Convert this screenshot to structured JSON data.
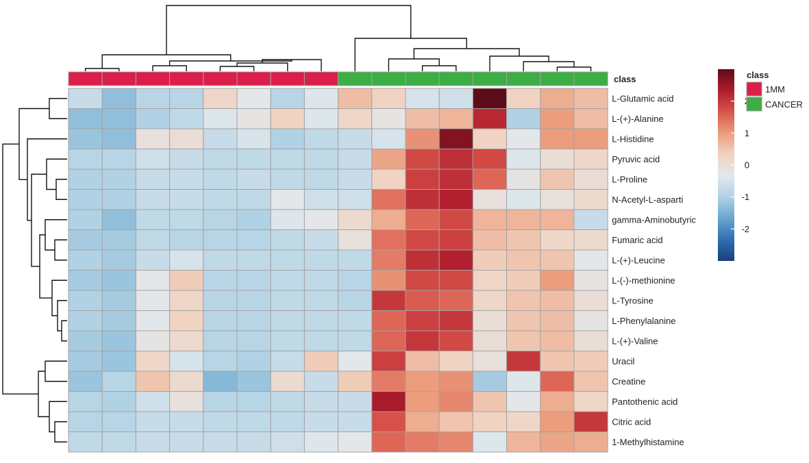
{
  "chart_data": {
    "type": "heatmap",
    "class_title": "class",
    "class_legend": {
      "title": "class",
      "entries": [
        {
          "label": "1MM",
          "color": "#dc1e4a"
        },
        {
          "label": "CANCER",
          "color": "#3cae45"
        }
      ]
    },
    "color_scale": {
      "range": [
        -3,
        3
      ],
      "ticks": [
        {
          "value": 2,
          "label": "2"
        },
        {
          "value": 1,
          "label": "1"
        },
        {
          "value": 0,
          "label": "0"
        },
        {
          "value": -1,
          "label": "-1"
        },
        {
          "value": -2,
          "label": "-2"
        }
      ],
      "stops": [
        "#1b3f7c",
        "#2f6fb2",
        "#69a6cd",
        "#b1d2e5",
        "#e2e8ec",
        "#f1d2c0",
        "#eb9d7c",
        "#d8544b",
        "#b01c2c",
        "#5d0d17"
      ]
    },
    "columns": [
      "1MM",
      "1MM",
      "1MM",
      "1MM",
      "1MM",
      "1MM",
      "1MM",
      "1MM",
      "CANCER",
      "CANCER",
      "CANCER",
      "CANCER",
      "CANCER",
      "CANCER",
      "CANCER",
      "CANCER"
    ],
    "rows": [
      {
        "label": "L-Glutamic acid",
        "values": [
          -0.7,
          -1.3,
          -0.9,
          -0.9,
          0.2,
          -0.3,
          -0.9,
          -0.4,
          0.6,
          0.3,
          -0.5,
          -0.6,
          3.0,
          0.3,
          0.8,
          0.6
        ]
      },
      {
        "label": "L-(+)-Alanine",
        "values": [
          -1.3,
          -1.3,
          -1.0,
          -0.8,
          -0.4,
          -0.2,
          0.3,
          -0.4,
          0.2,
          -0.2,
          0.6,
          0.7,
          2.2,
          -1.0,
          1.0,
          0.6
        ]
      },
      {
        "label": "L-Histidine",
        "values": [
          -1.2,
          -1.3,
          -0.1,
          0.0,
          -0.7,
          -0.5,
          -1.0,
          -0.8,
          -0.7,
          -0.5,
          1.1,
          2.7,
          0.3,
          -0.3,
          1.0,
          1.0
        ]
      },
      {
        "label": "Pyruvic acid",
        "values": [
          -0.9,
          -0.9,
          -0.6,
          -0.7,
          -0.8,
          -0.8,
          -0.8,
          -0.8,
          -0.7,
          0.9,
          1.8,
          2.1,
          1.8,
          -0.4,
          0.0,
          0.2
        ]
      },
      {
        "label": "L-Proline",
        "values": [
          -1.0,
          -1.0,
          -0.7,
          -0.7,
          -0.8,
          -0.7,
          -0.8,
          -0.8,
          -0.7,
          0.3,
          1.9,
          2.1,
          1.5,
          -0.2,
          0.5,
          0.0
        ]
      },
      {
        "label": "N-Acetyl-L-asparti",
        "values": [
          -1.0,
          -1.0,
          -0.7,
          -0.7,
          -0.8,
          -0.8,
          -0.3,
          -0.6,
          -0.6,
          1.4,
          2.1,
          2.3,
          -0.1,
          -0.4,
          -0.1,
          0.1
        ]
      },
      {
        "label": "gamma-Aminobutyric",
        "values": [
          -1.0,
          -1.3,
          -0.8,
          -0.8,
          -0.9,
          -1.0,
          -0.4,
          -0.3,
          0.1,
          0.8,
          1.5,
          1.8,
          0.7,
          0.7,
          0.7,
          -0.7
        ]
      },
      {
        "label": "Fumaric acid",
        "values": [
          -1.1,
          -1.1,
          -0.8,
          -0.9,
          -0.9,
          -0.9,
          -0.8,
          -0.7,
          -0.1,
          1.4,
          1.8,
          1.9,
          0.6,
          0.5,
          0.2,
          0.1
        ]
      },
      {
        "label": "L-(+)-Leucine",
        "values": [
          -1.0,
          -1.1,
          -0.7,
          -0.5,
          -0.8,
          -0.8,
          -0.8,
          -0.8,
          -0.8,
          1.3,
          2.1,
          2.3,
          0.4,
          0.5,
          0.5,
          -0.3
        ]
      },
      {
        "label": "L-(-)-methionine",
        "values": [
          -1.1,
          -1.2,
          -0.3,
          0.4,
          -0.9,
          -0.9,
          -0.8,
          -0.8,
          -0.9,
          1.1,
          1.8,
          1.8,
          0.2,
          0.4,
          1.0,
          -0.2
        ]
      },
      {
        "label": "L-Tyrosine",
        "values": [
          -1.0,
          -1.1,
          -0.3,
          0.2,
          -0.9,
          -0.9,
          -0.8,
          -0.8,
          -0.9,
          2.0,
          1.6,
          1.5,
          0.2,
          0.5,
          0.6,
          0.0
        ]
      },
      {
        "label": "L-Phenylalanine",
        "values": [
          -1.0,
          -1.1,
          -0.3,
          0.3,
          -0.9,
          -0.9,
          -0.8,
          -0.8,
          -0.8,
          1.5,
          1.9,
          2.0,
          0.0,
          0.5,
          0.6,
          -0.2
        ]
      },
      {
        "label": "L-(+)-Valine",
        "values": [
          -1.1,
          -1.2,
          -0.2,
          0.1,
          -0.9,
          -0.9,
          -0.8,
          -0.8,
          -0.8,
          1.5,
          2.0,
          1.8,
          0.0,
          0.5,
          0.6,
          0.0
        ]
      },
      {
        "label": "Uracil",
        "values": [
          -1.1,
          -1.2,
          0.2,
          -0.5,
          -0.9,
          -1.0,
          -0.7,
          0.4,
          -0.3,
          1.9,
          0.6,
          0.3,
          -0.1,
          2.0,
          0.5,
          0.4
        ]
      },
      {
        "label": "Creatine",
        "values": [
          -1.2,
          -0.9,
          0.5,
          0.1,
          -1.4,
          -1.2,
          0.1,
          -0.7,
          0.4,
          1.3,
          1.0,
          1.1,
          -1.1,
          -0.4,
          1.5,
          0.5
        ]
      },
      {
        "label": "Pantothenic acid",
        "values": [
          -0.9,
          -1.0,
          -0.6,
          -0.1,
          -0.9,
          -0.9,
          -0.8,
          -0.7,
          -0.7,
          2.4,
          1.0,
          1.2,
          0.5,
          -0.3,
          0.8,
          0.2
        ]
      },
      {
        "label": "Citric acid",
        "values": [
          -0.9,
          -0.9,
          -0.7,
          -0.7,
          -0.8,
          -0.8,
          -0.8,
          -0.7,
          -0.7,
          1.7,
          0.8,
          0.5,
          0.3,
          0.2,
          1.0,
          2.0
        ]
      },
      {
        "label": "1-Methylhistamine",
        "values": [
          -0.8,
          -0.8,
          -0.7,
          -0.7,
          -0.7,
          -0.7,
          -0.6,
          -0.4,
          -0.3,
          1.5,
          1.3,
          1.2,
          -0.4,
          0.7,
          0.9,
          0.8
        ]
      }
    ]
  }
}
